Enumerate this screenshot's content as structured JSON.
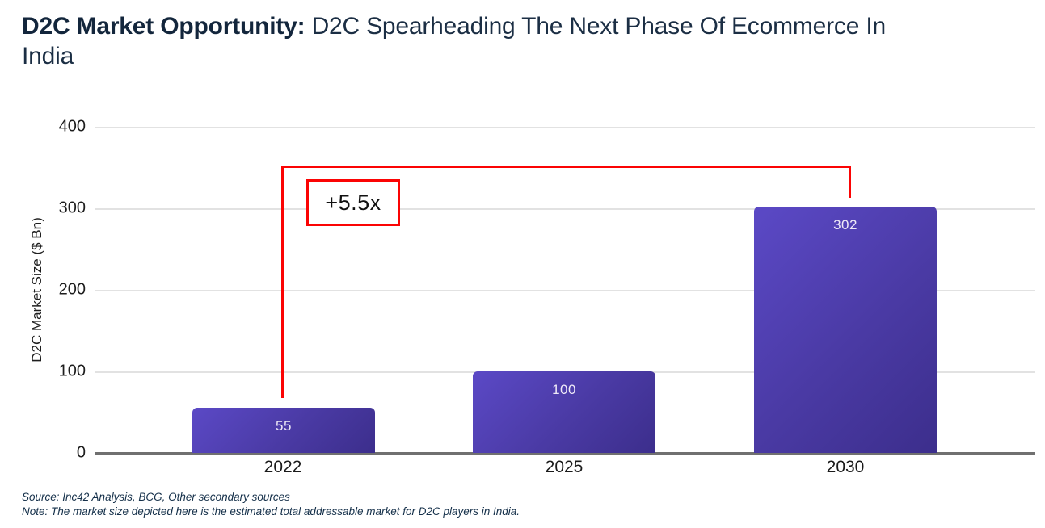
{
  "header": {
    "title_bold": "D2C Market Opportunity:",
    "title_rest": "D2C Spearheading The Next Phase Of Ecommerce In India"
  },
  "chart_data": {
    "type": "bar",
    "title": "D2C Market Opportunity",
    "categories": [
      "2022",
      "2025",
      "2030"
    ],
    "values": [
      55,
      100,
      302
    ],
    "xlabel": "",
    "ylabel": "D2C Market Size ($ Bn)",
    "ylim": [
      0,
      400
    ],
    "yticks": [
      400,
      300,
      200,
      100,
      0
    ],
    "grid": "horizontal gridlines on",
    "legend": "none",
    "bar_gradient": [
      "#5b49c6",
      "#3c2e8c"
    ],
    "value_label_color": "#eee9f7",
    "annotation": {
      "label": "+5.5x",
      "color": "#fb0404",
      "from_category": "2022",
      "to_category": "2030"
    }
  },
  "footer": {
    "source": "Source: Inc42 Analysis, BCG, Other secondary sources",
    "note": "Note: The market size depicted here is the estimated total addressable market for D2C players in India."
  }
}
